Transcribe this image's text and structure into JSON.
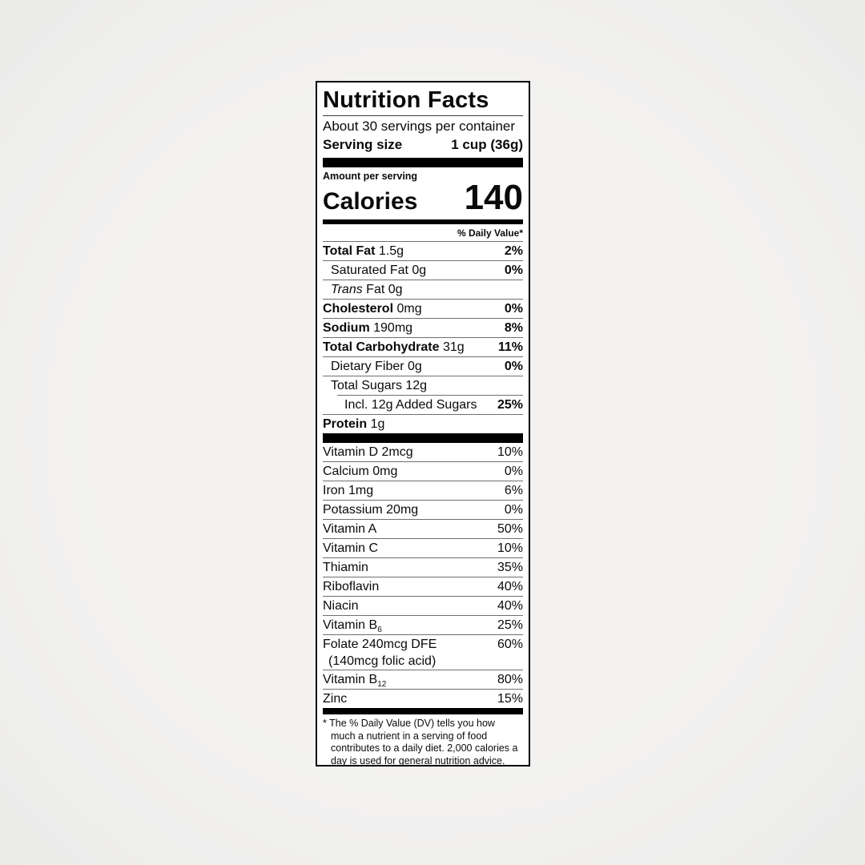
{
  "label": {
    "title": "Nutrition Facts",
    "servings_per_container": "About 30 servings per container",
    "serving_size_label": "Serving size",
    "serving_size_value": "1 cup (36g)",
    "amount_per_serving": "Amount per serving",
    "calories_label": "Calories",
    "calories_value": "140",
    "daily_value_header": "% Daily Value*",
    "nutrients": [
      {
        "bold_name": "Total Fat",
        "rest": " 1.5g",
        "dv": "2%",
        "indent": 0
      },
      {
        "name": "Saturated Fat 0g",
        "dv": "0%",
        "indent": 1
      },
      {
        "italic": "Trans",
        "rest": " Fat 0g",
        "dv": "",
        "indent": 1
      },
      {
        "bold_name": "Cholesterol",
        "rest": " 0mg",
        "dv": "0%",
        "indent": 0
      },
      {
        "bold_name": "Sodium",
        "rest": " 190mg",
        "dv": "8%",
        "indent": 0
      },
      {
        "bold_name": "Total Carbohydrate",
        "rest": " 31g",
        "dv": "11%",
        "indent": 0
      },
      {
        "name": "Dietary Fiber 0g",
        "dv": "0%",
        "indent": 1
      },
      {
        "name": "Total Sugars 12g",
        "dv": "",
        "indent": 1
      },
      {
        "name": "Incl. 12g Added Sugars",
        "dv": "25%",
        "indent": 2,
        "rule_indent": 18
      },
      {
        "bold_name": "Protein",
        "rest": " 1g",
        "dv": "",
        "indent": 0
      }
    ],
    "vitamins": [
      {
        "name": "Vitamin D 2mcg",
        "dv": "10%"
      },
      {
        "name": "Calcium 0mg",
        "dv": "0%"
      },
      {
        "name": "Iron 1mg",
        "dv": "6%"
      },
      {
        "name": "Potassium 20mg",
        "dv": "0%"
      },
      {
        "name": "Vitamin A",
        "dv": "50%"
      },
      {
        "name": "Vitamin C",
        "dv": "10%"
      },
      {
        "name": "Thiamin",
        "dv": "35%"
      },
      {
        "name": "Riboflavin",
        "dv": "40%"
      },
      {
        "name": "Niacin",
        "dv": "40%"
      },
      {
        "name": "Vitamin B",
        "sub": "6",
        "dv": "25%"
      },
      {
        "name": "Folate 240mcg DFE",
        "line2": "(140mcg folic acid)",
        "dv": "60%"
      },
      {
        "name": "Vitamin B",
        "sub": "12",
        "dv": "80%"
      },
      {
        "name": "Zinc",
        "dv": "15%"
      }
    ],
    "footnote_marker": "*",
    "footnote_text": "The % Daily Value (DV) tells you how much a nutrient in a serving of food contributes to a daily diet. 2,000 calories a day is used for general nutrition advice."
  }
}
